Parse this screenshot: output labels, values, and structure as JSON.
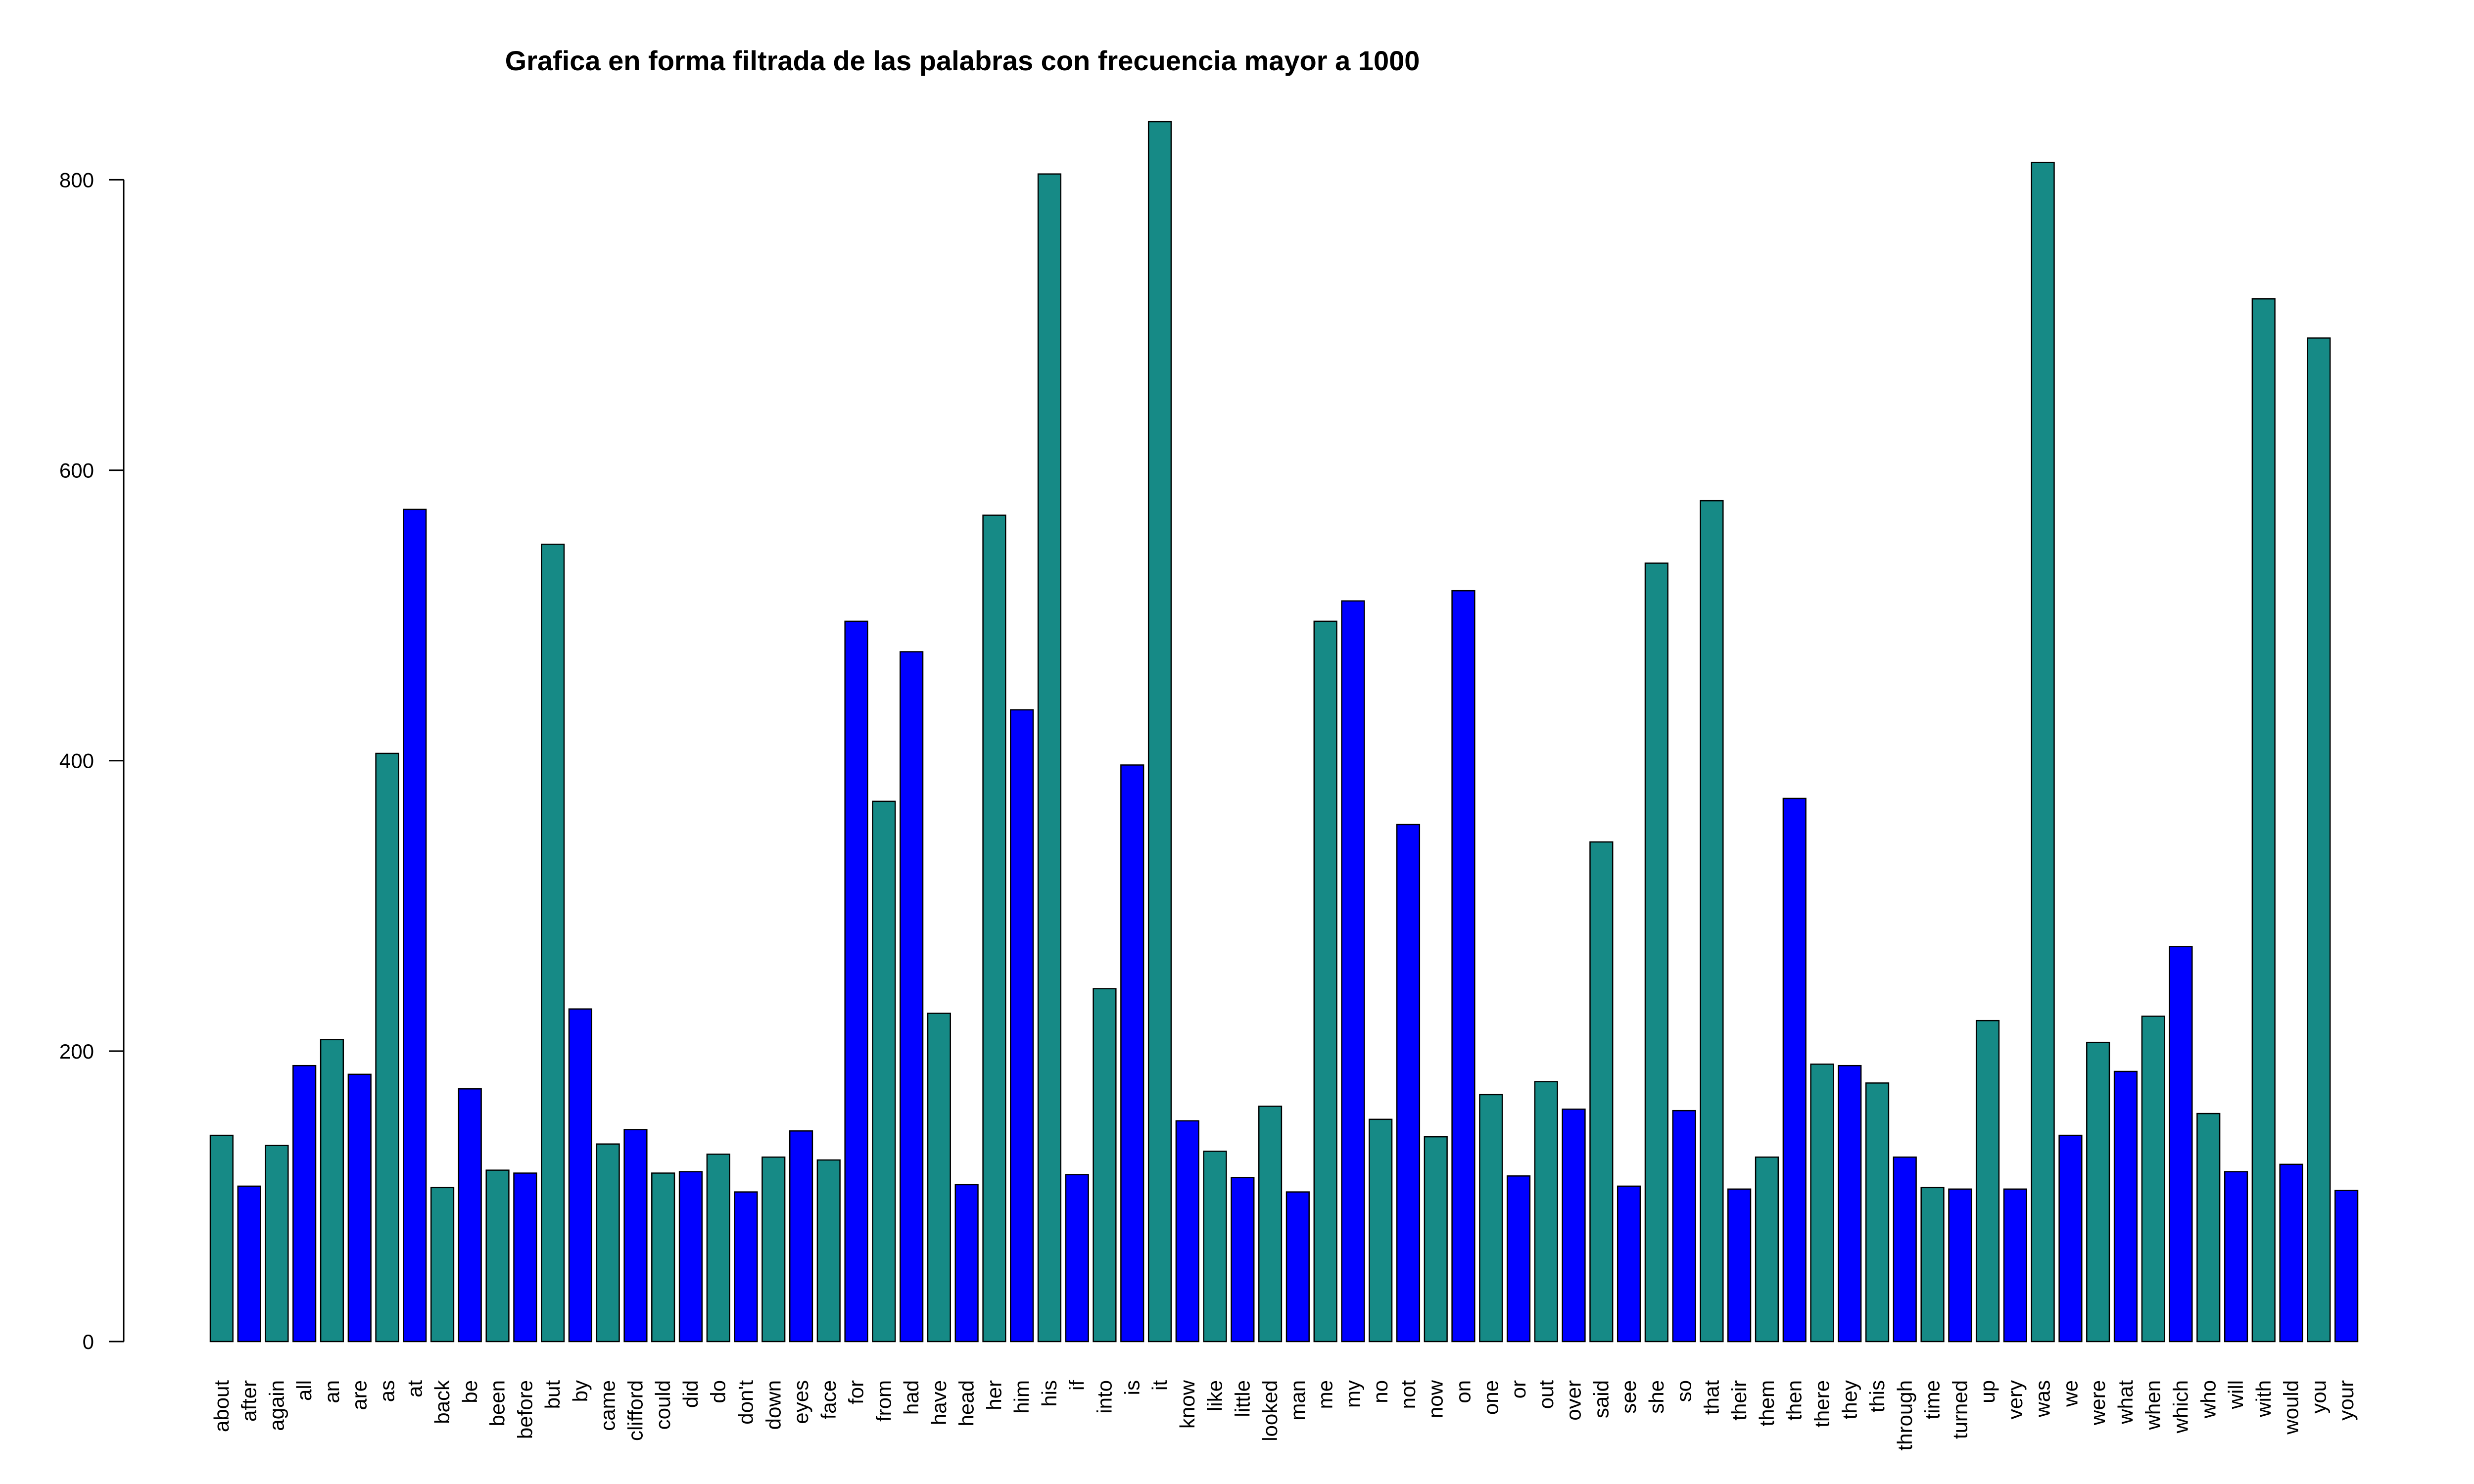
{
  "chart_data": {
    "type": "bar",
    "title": "Grafica en forma filtrada de las palabras con frecuencia mayor a 1000",
    "xlabel": "",
    "ylabel": "",
    "ylim": [
      0,
      840
    ],
    "yticks": [
      0,
      200,
      400,
      600,
      800
    ],
    "grid": false,
    "colors": [
      "#168a86",
      "#0000ff"
    ],
    "categories": [
      "about",
      "after",
      "again",
      "all",
      "an",
      "are",
      "as",
      "at",
      "back",
      "be",
      "been",
      "before",
      "but",
      "by",
      "came",
      "clifford",
      "could",
      "did",
      "do",
      "don't",
      "down",
      "eyes",
      "face",
      "for",
      "from",
      "had",
      "have",
      "head",
      "her",
      "him",
      "his",
      "if",
      "into",
      "is",
      "it",
      "know",
      "like",
      "little",
      "looked",
      "man",
      "me",
      "my",
      "no",
      "not",
      "now",
      "on",
      "one",
      "or",
      "out",
      "over",
      "said",
      "see",
      "she",
      "so",
      "that",
      "their",
      "them",
      "then",
      "there",
      "they",
      "this",
      "through",
      "time",
      "turned",
      "up",
      "very",
      "was",
      "we",
      "were",
      "what",
      "when",
      "which",
      "who",
      "will",
      "with",
      "would",
      "you",
      "your"
    ],
    "values": [
      142,
      107,
      135,
      190,
      208,
      184,
      405,
      573,
      106,
      174,
      118,
      116,
      549,
      229,
      136,
      146,
      116,
      117,
      129,
      103,
      127,
      145,
      125,
      496,
      372,
      475,
      226,
      108,
      569,
      435,
      804,
      115,
      243,
      397,
      840,
      152,
      131,
      113,
      162,
      103,
      496,
      510,
      153,
      356,
      141,
      517,
      170,
      114,
      179,
      160,
      344,
      107,
      536,
      159,
      579,
      105,
      127,
      374,
      191,
      190,
      178,
      127,
      106,
      105,
      221,
      105,
      812,
      142,
      206,
      186,
      224,
      272,
      157,
      117,
      718,
      122,
      691,
      104
    ],
    "color_index": [
      0,
      1,
      0,
      1,
      0,
      1,
      0,
      1,
      0,
      1,
      0,
      1,
      0,
      1,
      0,
      1,
      0,
      1,
      0,
      1,
      0,
      1,
      0,
      1,
      0,
      1,
      0,
      1,
      0,
      1,
      0,
      1,
      0,
      1,
      0,
      1,
      0,
      1,
      0,
      1,
      0,
      1,
      0,
      1,
      0,
      1,
      0,
      1,
      0,
      1,
      0,
      1,
      0,
      1,
      0,
      1,
      0,
      1,
      0,
      1,
      0,
      1,
      0,
      1,
      0,
      1,
      0,
      1,
      0,
      1,
      0,
      1,
      0,
      1,
      0,
      1,
      0,
      1
    ]
  }
}
